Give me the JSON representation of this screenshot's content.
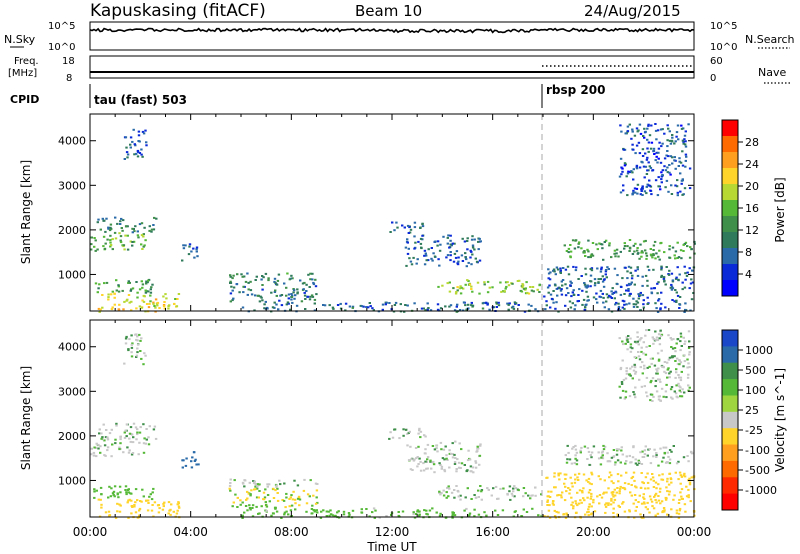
{
  "header": {
    "station": "Kapuskasing (fitACF)",
    "beam": "Beam 10",
    "date": "24/Aug/2015"
  },
  "noise_panel": {
    "left_label": "N.Sky",
    "right_label": "N.Search",
    "left_ticks": [
      "10^5",
      "10^0"
    ],
    "right_ticks": [
      "10^5",
      "10^0"
    ]
  },
  "freq_panel": {
    "left_label_1": "Freq.",
    "left_label_2": "[MHz]",
    "right_label": "Nave",
    "left_ticks": [
      "18",
      "8"
    ],
    "right_ticks": [
      "60",
      "0"
    ]
  },
  "cpid_panel": {
    "label": "CPID",
    "segments": [
      {
        "name": "tau (fast) 503",
        "start_hour": 0
      },
      {
        "name": "rbsp 200",
        "start_hour": 18
      }
    ]
  },
  "time_axis": {
    "label": "Time UT",
    "ticks": [
      "00:00",
      "04:00",
      "08:00",
      "12:00",
      "16:00",
      "20:00",
      "00:00"
    ],
    "hours": [
      0,
      4,
      8,
      12,
      16,
      20,
      24
    ]
  },
  "range_axis": {
    "label": "Slant Range [km]",
    "ticks": [
      "4000",
      "3000",
      "2000",
      "1000"
    ],
    "values": [
      4000,
      3000,
      2000,
      1000
    ],
    "ylim": [
      180,
      4600
    ]
  },
  "power_colorbar": {
    "label": "Power [dB]",
    "ticks": [
      "28",
      "24",
      "20",
      "16",
      "12",
      "8",
      "4"
    ],
    "colors": [
      "#ff0000",
      "#ff6a00",
      "#ff9f1f",
      "#ffd42a",
      "#b7d833",
      "#55b837",
      "#3f8f4a",
      "#2f7a5a",
      "#2a6aa8",
      "#0a2ad8",
      "#0000ff"
    ]
  },
  "velocity_colorbar": {
    "label": "Velocity [m s^-1]",
    "ticks": [
      "1000",
      "500",
      "100",
      "25",
      "-25",
      "-100",
      "-500",
      "-1000"
    ],
    "colors": [
      "#1a46c8",
      "#2a6aa8",
      "#3f8f4a",
      "#55b837",
      "#9fd640",
      "#c8c8c8",
      "#ffd42a",
      "#ff9f1f",
      "#ff6a00",
      "#ff2a00",
      "#ff0000"
    ]
  },
  "chart_data": {
    "type": "heatmap",
    "x_unit": "hours UT",
    "y_unit": "km",
    "xlim": [
      0,
      24
    ],
    "ylim": [
      180,
      4600
    ],
    "echo_regions": [
      {
        "t0": 0.0,
        "t1": 2.3,
        "r0": 1550,
        "r1": 1950,
        "power": 14,
        "velocity": 0
      },
      {
        "t0": 0.2,
        "t1": 2.6,
        "r0": 1950,
        "r1": 2300,
        "power": 9,
        "velocity": 0
      },
      {
        "t0": 0.0,
        "t1": 2.5,
        "r0": 600,
        "r1": 900,
        "power": 12,
        "velocity": -60
      },
      {
        "t0": 0.3,
        "t1": 3.5,
        "r0": 180,
        "r1": 600,
        "power": 20,
        "velocity": -200
      },
      {
        "t0": 1.3,
        "t1": 2.2,
        "r0": 3600,
        "r1": 4300,
        "power": 6,
        "velocity": 0
      },
      {
        "t0": 3.6,
        "t1": 4.3,
        "r0": 1300,
        "r1": 1700,
        "power": 6,
        "velocity": 400
      },
      {
        "t0": 5.5,
        "t1": 9.0,
        "r0": 850,
        "r1": 1050,
        "power": 10,
        "velocity": 0
      },
      {
        "t0": 5.5,
        "t1": 9.0,
        "r0": 400,
        "r1": 850,
        "power": 8,
        "velocity": -100
      },
      {
        "t0": 11.8,
        "t1": 13.4,
        "r0": 1950,
        "r1": 2200,
        "power": 6,
        "velocity": 0
      },
      {
        "t0": 12.5,
        "t1": 15.5,
        "r0": 1200,
        "r1": 1900,
        "power": 6,
        "velocity": 0
      },
      {
        "t0": 13.8,
        "t1": 17.9,
        "r0": 580,
        "r1": 900,
        "power": 16,
        "velocity": 0
      },
      {
        "t0": 6.0,
        "t1": 17.9,
        "r0": 180,
        "r1": 400,
        "power": 7,
        "velocity": -60
      },
      {
        "t0": 18.8,
        "t1": 24.0,
        "r0": 1350,
        "r1": 1800,
        "power": 12,
        "velocity": 0
      },
      {
        "t0": 18.0,
        "t1": 24.0,
        "r0": 180,
        "r1": 1200,
        "power": 6,
        "velocity": -150
      },
      {
        "t0": 21.0,
        "t1": 23.8,
        "r0": 2800,
        "r1": 4400,
        "power": 5,
        "velocity": 0
      }
    ]
  }
}
